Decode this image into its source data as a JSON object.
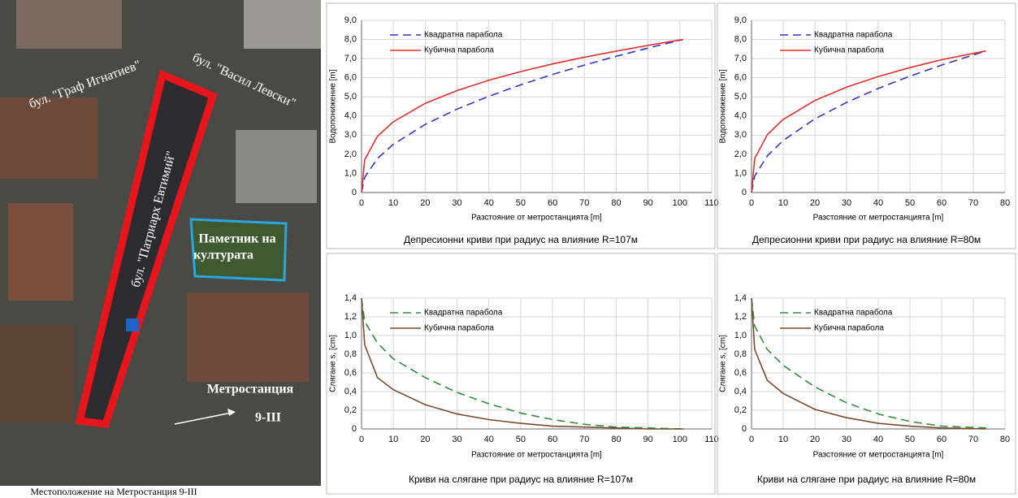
{
  "map": {
    "street_1": "бул. \"Граф Игнатиев\"",
    "street_2": "бул. \"Васил Левски\"",
    "street_3": "бул. \"Патриарх Евтимий\"",
    "monument": [
      "Паметник на",
      "културата"
    ],
    "station": [
      "Метростанция",
      "9-III"
    ],
    "caption": "Местоположение на Метростанция 9-III"
  },
  "chart_data": [
    {
      "type": "line",
      "title": "Депресионни криви при радиус на влияние R=107м",
      "xlabel": "Разстояние от метростанцията [m]",
      "ylabel": "Водопонижение [m]",
      "x": [
        0,
        1,
        5,
        10,
        20,
        30,
        40,
        50,
        60,
        70,
        80,
        90,
        101
      ],
      "series": [
        {
          "name": "Квадратна парабола",
          "color": "#3535c8",
          "style": "dashed",
          "values": [
            0,
            0.8,
            1.78,
            2.52,
            3.56,
            4.36,
            5.03,
            5.63,
            6.17,
            6.66,
            7.12,
            7.55,
            8.0
          ]
        },
        {
          "name": "Кубична парабола",
          "color": "#e0302e",
          "style": "solid",
          "values": [
            0,
            1.72,
            2.94,
            3.7,
            4.66,
            5.33,
            5.87,
            6.32,
            6.72,
            7.07,
            7.39,
            7.69,
            8.0
          ]
        }
      ],
      "xlim": [
        0,
        110
      ],
      "xticks": [
        0,
        10,
        20,
        30,
        40,
        50,
        60,
        70,
        80,
        90,
        100,
        110
      ],
      "ylim": [
        0,
        9
      ],
      "yticks": [
        0,
        {
          "value": 1,
          "label": "1,0"
        },
        {
          "value": 2,
          "label": "2,0"
        },
        {
          "value": 3,
          "label": "3,0"
        },
        {
          "value": 4,
          "label": "4,0"
        },
        {
          "value": 5,
          "label": "5,0"
        },
        {
          "value": 6,
          "label": "6,0"
        },
        {
          "value": 7,
          "label": "7,0"
        },
        {
          "value": 8,
          "label": "8,0"
        },
        {
          "value": 9,
          "label": "9,0"
        }
      ],
      "grid": true,
      "legend": "upper left"
    },
    {
      "type": "line",
      "title": "Депресионни криви при радиус на влияние R=80м",
      "xlabel": "Разстояние от метростанцията [m]",
      "ylabel": "Водопонижение [m]",
      "x": [
        0,
        1,
        5,
        10,
        20,
        30,
        40,
        50,
        60,
        74
      ],
      "series": [
        {
          "name": "Квадратна парабола",
          "color": "#3535c8",
          "style": "dashed",
          "values": [
            0,
            0.86,
            1.92,
            2.72,
            3.85,
            4.71,
            5.44,
            6.08,
            6.66,
            7.4
          ]
        },
        {
          "name": "Кубична парабола",
          "color": "#e0302e",
          "style": "solid",
          "values": [
            0,
            1.77,
            3.03,
            3.82,
            4.81,
            5.51,
            6.06,
            6.53,
            6.94,
            7.4
          ]
        }
      ],
      "xlim": [
        0,
        80
      ],
      "xticks": [
        0,
        10,
        20,
        30,
        40,
        50,
        60,
        70,
        80
      ],
      "ylim": [
        0,
        9
      ],
      "yticks": [
        0,
        {
          "value": 1,
          "label": "1,0"
        },
        {
          "value": 2,
          "label": "2,0"
        },
        {
          "value": 3,
          "label": "3,0"
        },
        {
          "value": 4,
          "label": "4,0"
        },
        {
          "value": 5,
          "label": "5,0"
        },
        {
          "value": 6,
          "label": "6,0"
        },
        {
          "value": 7,
          "label": "7,0"
        },
        {
          "value": 8,
          "label": "8,0"
        },
        {
          "value": 9,
          "label": "9,0"
        }
      ],
      "grid": true,
      "legend": "upper left"
    },
    {
      "type": "line",
      "title": "Криви на слягане при радиус на влияние R=107м",
      "xlabel": "Разстояние от метростанцията [m]",
      "ylabel": "Слягане s, [cm]",
      "x": [
        0,
        1,
        5,
        10,
        20,
        30,
        40,
        50,
        60,
        70,
        80,
        90,
        101
      ],
      "series": [
        {
          "name": "Квадратна парабола",
          "color": "#2f8f3f",
          "style": "dashed",
          "values": [
            1.4,
            1.15,
            0.92,
            0.75,
            0.55,
            0.39,
            0.27,
            0.17,
            0.1,
            0.05,
            0.02,
            0.01,
            0
          ]
        },
        {
          "name": "Кубична парабола",
          "color": "#7a4b2c",
          "style": "solid",
          "values": [
            1.4,
            0.9,
            0.55,
            0.42,
            0.26,
            0.16,
            0.1,
            0.06,
            0.03,
            0.02,
            0.01,
            0,
            0
          ]
        }
      ],
      "xlim": [
        0,
        110
      ],
      "xticks": [
        0,
        10,
        20,
        30,
        40,
        50,
        60,
        70,
        80,
        90,
        100,
        110
      ],
      "ylim": [
        0,
        1.4
      ],
      "yticks": [
        0,
        {
          "value": 0.2,
          "label": "0,2"
        },
        {
          "value": 0.4,
          "label": "0,4"
        },
        {
          "value": 0.6,
          "label": "0,6"
        },
        {
          "value": 0.8,
          "label": "0,8"
        },
        {
          "value": 1,
          "label": "1,0"
        },
        {
          "value": 1.2,
          "label": "1,2"
        },
        {
          "value": 1.4,
          "label": "1,4"
        }
      ],
      "grid": true,
      "legend": "upper left"
    },
    {
      "type": "line",
      "title": "Криви на слягане при радиус на влияние R=80м",
      "xlabel": "Разстояние от метростанцията [m]",
      "ylabel": "Слягане s, [cm]",
      "x": [
        0,
        1,
        5,
        10,
        20,
        30,
        40,
        50,
        60,
        74
      ],
      "series": [
        {
          "name": "Квадратна парабола",
          "color": "#2f8f3f",
          "style": "dashed",
          "values": [
            1.4,
            1.1,
            0.85,
            0.68,
            0.45,
            0.28,
            0.16,
            0.08,
            0.03,
            0.01
          ]
        },
        {
          "name": "Кубична парабола",
          "color": "#7a4b2c",
          "style": "solid",
          "values": [
            1.4,
            0.85,
            0.52,
            0.38,
            0.21,
            0.12,
            0.06,
            0.03,
            0.01,
            0
          ]
        }
      ],
      "xlim": [
        0,
        80
      ],
      "xticks": [
        0,
        10,
        20,
        30,
        40,
        50,
        60,
        70,
        80
      ],
      "ylim": [
        0,
        1.4
      ],
      "yticks": [
        0,
        {
          "value": 0.2,
          "label": "0,2"
        },
        {
          "value": 0.4,
          "label": "0,4"
        },
        {
          "value": 0.6,
          "label": "0,6"
        },
        {
          "value": 0.8,
          "label": "0,8"
        },
        {
          "value": 1,
          "label": "1,0"
        },
        {
          "value": 1.2,
          "label": "1,2"
        },
        {
          "value": 1.4,
          "label": "1,4"
        }
      ],
      "grid": true,
      "legend": "upper left"
    }
  ]
}
